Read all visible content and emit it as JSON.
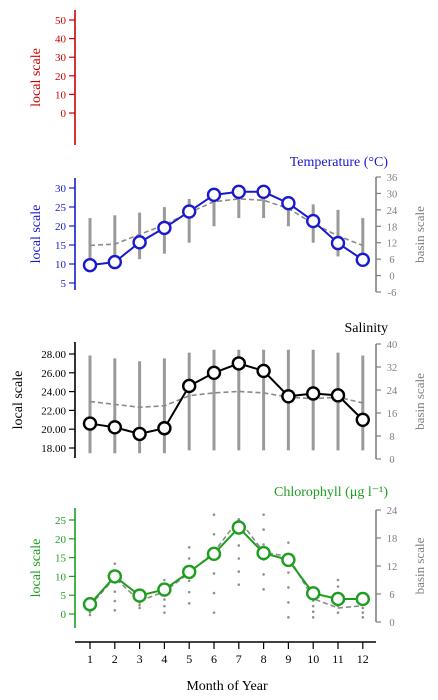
{
  "colors": {
    "blank": "#cc0000",
    "temperature": "#1a1acc",
    "salinity": "#000000",
    "chlorophyll": "#1e9e1e",
    "basin": "#808080"
  },
  "x_axis": {
    "label": "Month of Year",
    "ticks": [
      "1",
      "2",
      "3",
      "4",
      "5",
      "6",
      "7",
      "8",
      "9",
      "10",
      "11",
      "12"
    ]
  },
  "chart_data": [
    {
      "id": "blank",
      "type": "line",
      "title": "",
      "ylabel": "local scale",
      "ylim": [
        0,
        50
      ],
      "y_ticks": [
        "0",
        "10",
        "20",
        "30",
        "40",
        "50"
      ],
      "series": []
    },
    {
      "id": "temperature",
      "type": "line",
      "title": "Temperature (°C)",
      "ylabel": "local scale",
      "ylabel_right": "basin scale",
      "ylim": [
        5,
        30
      ],
      "y_ticks": [
        "5",
        "10",
        "15",
        "20",
        "25",
        "30"
      ],
      "ylim_right": [
        -6,
        36
      ],
      "y_ticks_right": [
        "-6",
        "0",
        "6",
        "12",
        "18",
        "24",
        "30",
        "36"
      ],
      "x": [
        1,
        2,
        3,
        4,
        5,
        6,
        7,
        8,
        9,
        10,
        11,
        12
      ],
      "series": [
        {
          "values": [
            9.7,
            10.5,
            15.7,
            19.5,
            23.8,
            28.2,
            29.0,
            29.0,
            26.0,
            21.3,
            15.5,
            11.1
          ]
        }
      ],
      "basin_mean": [
        11.0,
        11.5,
        15.0,
        18.5,
        23.0,
        27.0,
        28.0,
        27.5,
        24.5,
        19.0,
        14.5,
        11.0
      ],
      "basin_range": [
        [
          5,
          21
        ],
        [
          5,
          22
        ],
        [
          6,
          23
        ],
        [
          8,
          25
        ],
        [
          12,
          28
        ],
        [
          18,
          30
        ],
        [
          21,
          31
        ],
        [
          21,
          30
        ],
        [
          18,
          28
        ],
        [
          12,
          26
        ],
        [
          7,
          24
        ],
        [
          4,
          21
        ]
      ]
    },
    {
      "id": "salinity",
      "type": "line",
      "title": "Salinity",
      "ylabel": "local scale",
      "ylabel_right": "basin scale",
      "ylim": [
        18,
        28
      ],
      "y_ticks": [
        "18.00",
        "20.00",
        "22.00",
        "24.00",
        "26.00",
        "28.00"
      ],
      "ylim_right": [
        0,
        40
      ],
      "y_ticks_right": [
        "0",
        "8",
        "16",
        "24",
        "32",
        "40"
      ],
      "x": [
        1,
        2,
        3,
        4,
        5,
        6,
        7,
        8,
        9,
        10,
        11,
        12
      ],
      "series": [
        {
          "values": [
            20.6,
            20.2,
            19.5,
            20.1,
            24.6,
            26.0,
            27.0,
            26.2,
            23.5,
            23.8,
            23.6,
            21.0
          ]
        }
      ],
      "basin_mean": [
        20,
        19,
        18,
        18.5,
        22,
        23,
        23.5,
        23,
        21.5,
        21,
        21.5,
        19.5
      ],
      "basin_range": [
        [
          2,
          36
        ],
        [
          2,
          35
        ],
        [
          2,
          34
        ],
        [
          2,
          35
        ],
        [
          3,
          37
        ],
        [
          3,
          38
        ],
        [
          3,
          38
        ],
        [
          3,
          38
        ],
        [
          3,
          38
        ],
        [
          3,
          38
        ],
        [
          3,
          37
        ],
        [
          3,
          36
        ]
      ]
    },
    {
      "id": "chlorophyll",
      "type": "line",
      "title": "Chlorophyll (μg l⁻¹)",
      "ylabel": "local scale",
      "ylabel_right": "basin scale",
      "ylim": [
        0,
        25
      ],
      "y_ticks": [
        "0",
        "5",
        "10",
        "15",
        "20",
        "25"
      ],
      "ylim_right": [
        0,
        24
      ],
      "y_ticks_right": [
        "0",
        "6",
        "12",
        "18",
        "24"
      ],
      "x": [
        1,
        2,
        3,
        4,
        5,
        6,
        7,
        8,
        9,
        10,
        11,
        12
      ],
      "series": [
        {
          "values": [
            2.6,
            10.0,
            4.9,
            6.5,
            11.2,
            16.0,
            23.0,
            16.2,
            14.4,
            5.5,
            4.0,
            4.0
          ]
        }
      ],
      "basin_mean": [
        3.5,
        9.5,
        4.5,
        6.5,
        10.5,
        15.0,
        22.0,
        15.0,
        14.0,
        5.0,
        3.0,
        3.5
      ],
      "basin_range": [
        [
          1.5,
          4.5
        ],
        [
          2.5,
          12.5
        ],
        [
          3,
          6
        ],
        [
          2,
          9
        ],
        [
          4,
          16
        ],
        [
          2,
          23
        ],
        [
          8,
          22
        ],
        [
          7,
          23
        ],
        [
          1,
          17
        ],
        [
          1,
          7
        ],
        [
          2,
          9
        ],
        [
          1,
          6
        ]
      ]
    }
  ]
}
